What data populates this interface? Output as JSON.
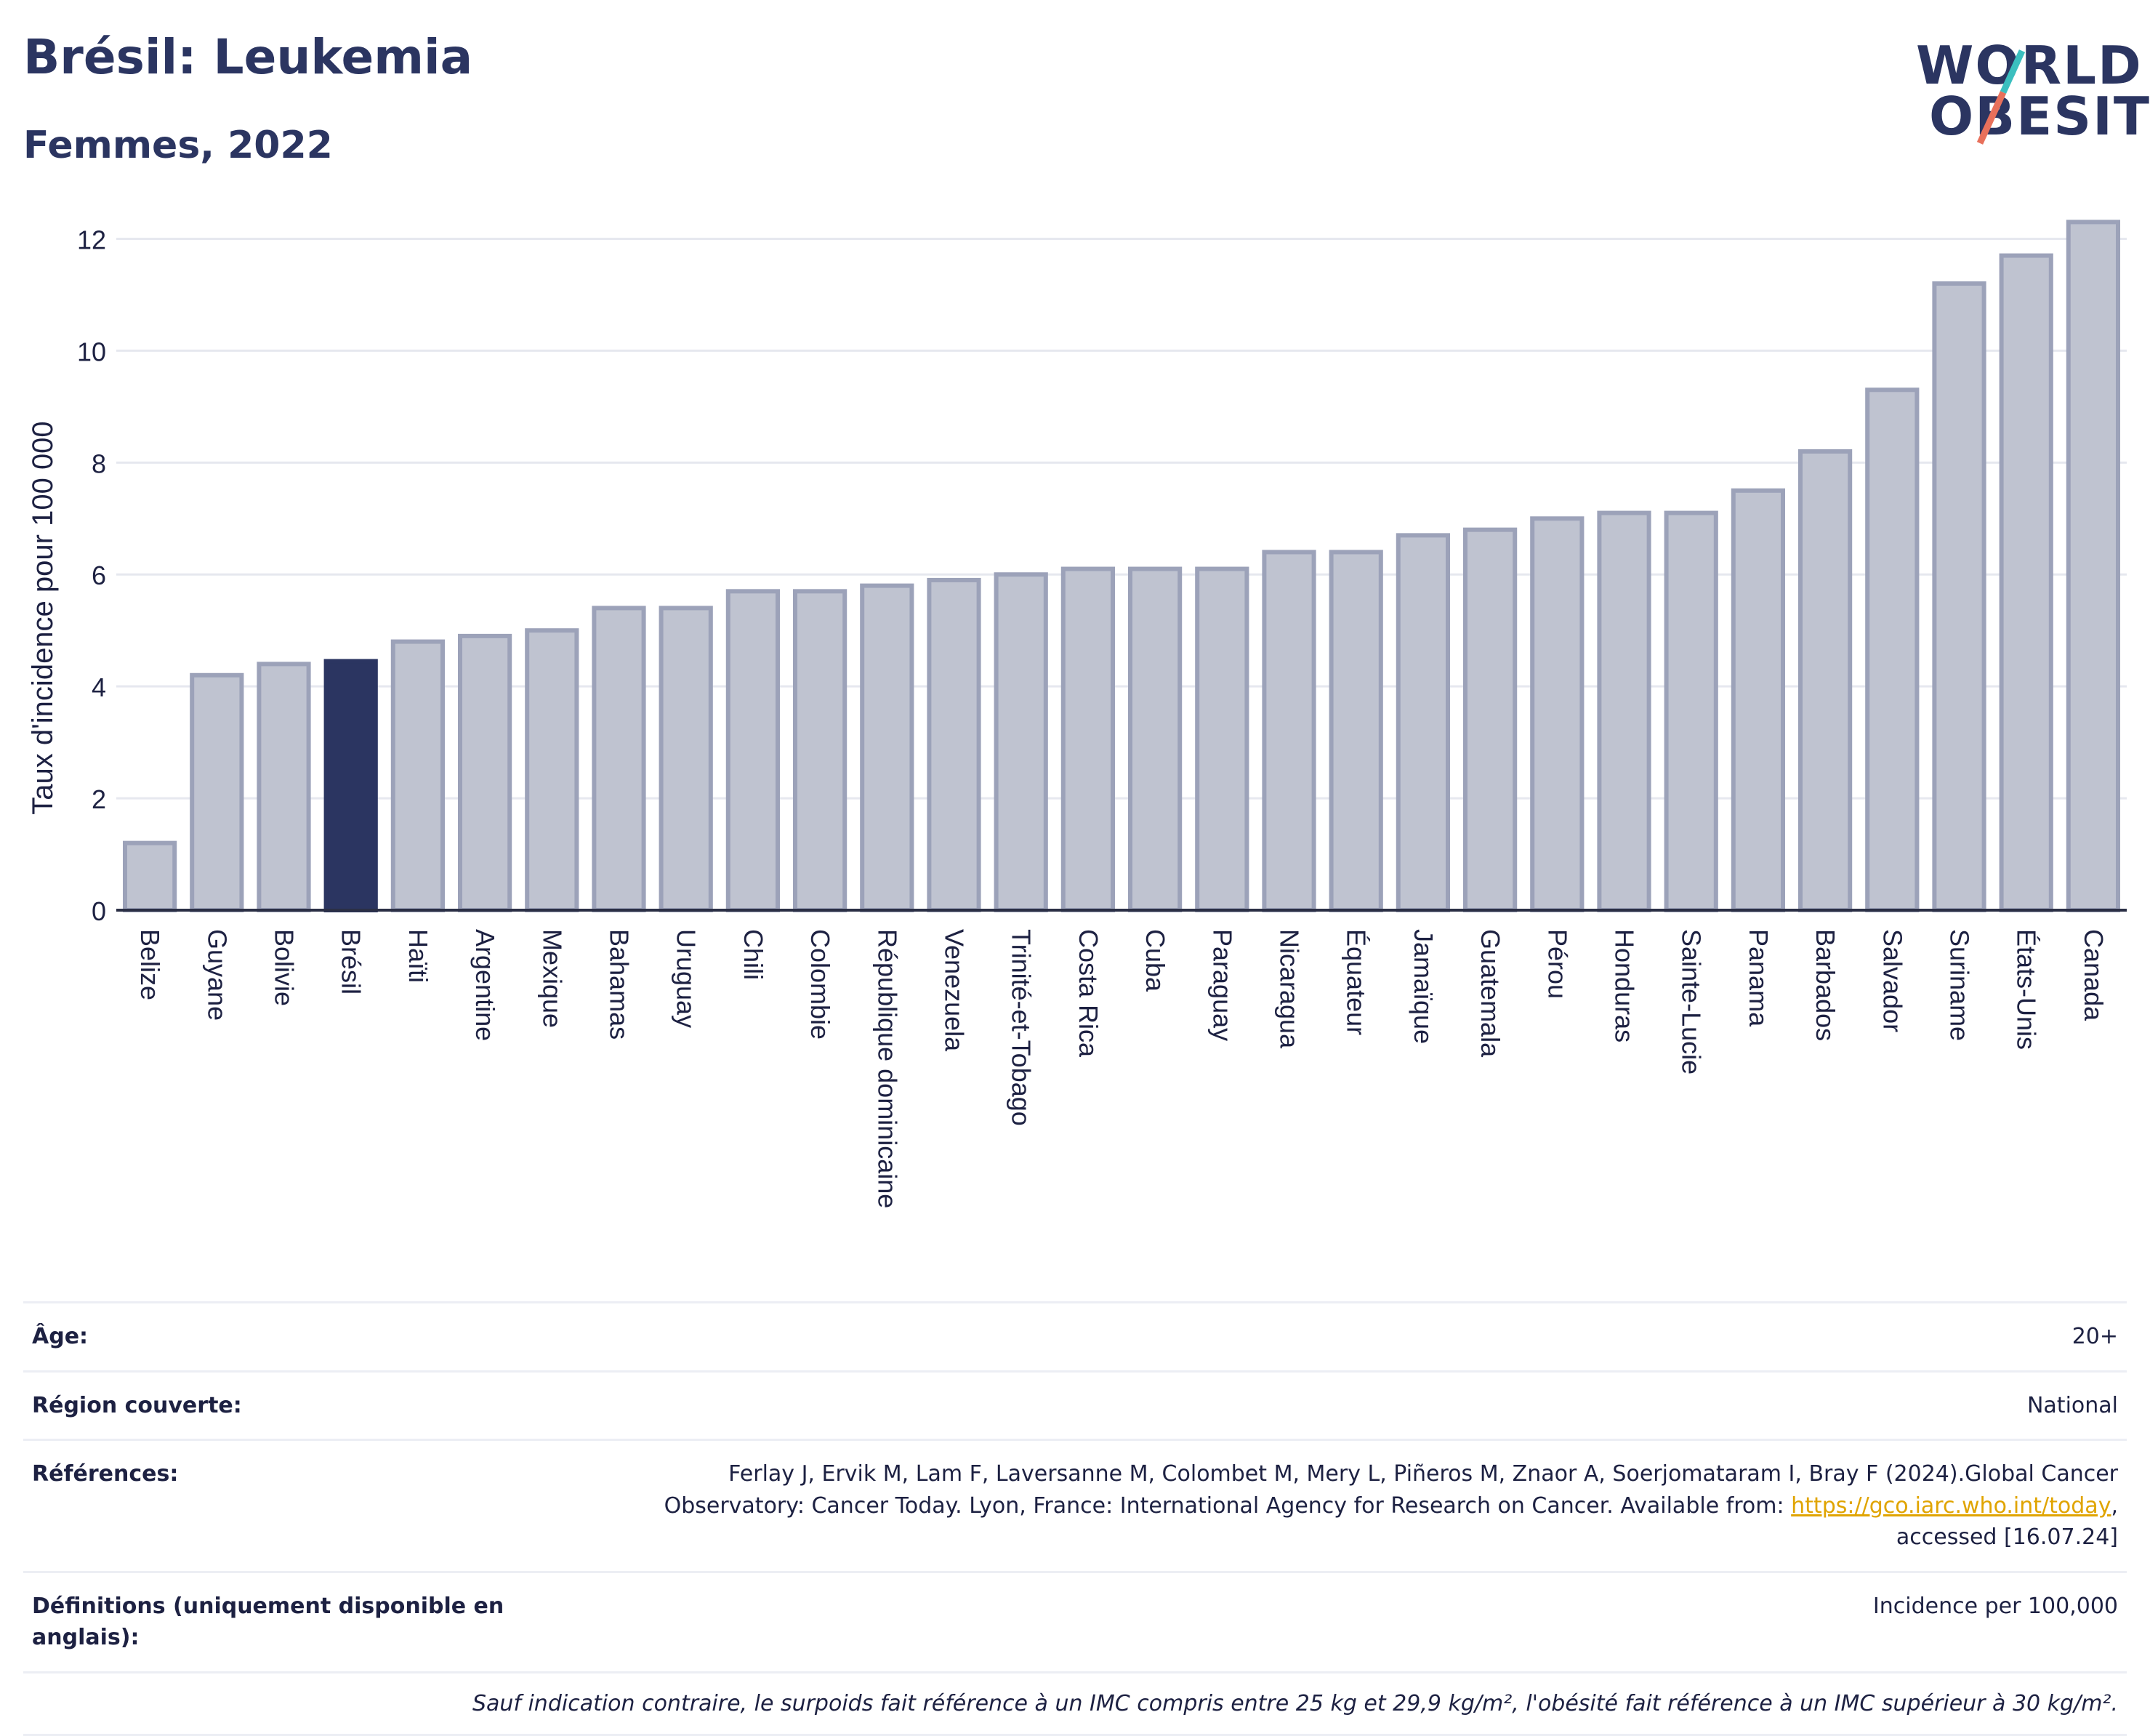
{
  "header": {
    "title": "Brésil: Leukemia",
    "subtitle": "Femmes, 2022"
  },
  "logo": {
    "line1": "WORLD",
    "line2": "OBESITY"
  },
  "chart_data": {
    "type": "bar",
    "ylabel": "Taux d'incidence pour 100 000",
    "ylim": [
      0,
      12.5
    ],
    "yticks": [
      0,
      2,
      4,
      6,
      8,
      10,
      12
    ],
    "grid": true,
    "highlight": "Brésil",
    "colors": {
      "bar": "#bfc3d0",
      "bar_edge": "#9ca2b9",
      "highlight": "#2b3561"
    },
    "categories": [
      "Belize",
      "Guyane",
      "Bolivie",
      "Brésil",
      "Haïti",
      "Argentine",
      "Mexique",
      "Bahamas",
      "Uruguay",
      "Chili",
      "Colombie",
      "République dominicaine",
      "Venezuela",
      "Trinité-et-Tobago",
      "Costa Rica",
      "Cuba",
      "Paraguay",
      "Nicaragua",
      "Équateur",
      "Jamaïque",
      "Guatemala",
      "Pérou",
      "Honduras",
      "Sainte-Lucie",
      "Panama",
      "Barbados",
      "Salvador",
      "Suriname",
      "États-Unis",
      "Canada"
    ],
    "values": [
      1.2,
      4.2,
      4.4,
      4.45,
      4.8,
      4.9,
      5.0,
      5.4,
      5.4,
      5.7,
      5.7,
      5.8,
      5.9,
      6.0,
      6.1,
      6.1,
      6.1,
      6.4,
      6.4,
      6.7,
      6.8,
      7.0,
      7.1,
      7.1,
      7.5,
      8.2,
      9.3,
      11.2,
      11.7,
      12.3
    ]
  },
  "meta": {
    "age_label": "Âge:",
    "age_value": "20+",
    "region_label": "Région couverte:",
    "region_value": "National",
    "refs_label": "Références:",
    "refs_text_1": "Ferlay J, Ervik M, Lam F, Laversanne M, Colombet M, Mery L, Piñeros M, Znaor A, Soerjomataram I, Bray F (2024).Global Cancer",
    "refs_text_2": "Observatory: Cancer Today. Lyon, France: International Agency for Research on Cancer. Available from:",
    "refs_link": "https://gco.iarc.who.int/today",
    "refs_text_3": "accessed [16.07.24]",
    "defs_label": "Définitions (uniquement disponible en anglais):",
    "defs_value": "Incidence per 100,000",
    "note": "Sauf indication contraire, le surpoids fait référence à un IMC compris entre 25 kg et 29,9 kg/m², l'obésité fait référence à un IMC supérieur à 30 kg/m²."
  }
}
